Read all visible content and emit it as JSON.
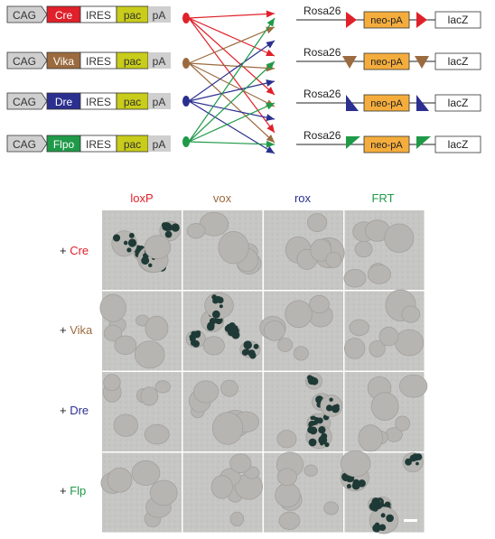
{
  "colors": {
    "cre": "#e0202a",
    "vika": "#9b6b3f",
    "dre": "#2b2f8f",
    "flp": "#1f9a48",
    "pac": "#c8cc1a",
    "gray": "#cfcfcf",
    "neo": "#f4ad3d",
    "panel": "#c3c3c1"
  },
  "constructs": {
    "cag": "CAG",
    "ires": "IRES",
    "pac": "pac",
    "pa": "pA",
    "rows": [
      {
        "recombinase": "Cre",
        "color": "#e0202a"
      },
      {
        "recombinase": "Vika",
        "color": "#9b6b3f"
      },
      {
        "recombinase": "Dre",
        "color": "#2b2f8f"
      },
      {
        "recombinase": "Flpo",
        "color": "#1f9a48"
      }
    ]
  },
  "reporters": {
    "locus": "Rosa26",
    "cassette": "neo-pA",
    "marker": "lacZ",
    "rows": [
      {
        "site": "loxP",
        "color": "#e0202a"
      },
      {
        "site": "vox",
        "color": "#9b6b3f"
      },
      {
        "site": "rox",
        "color": "#2b2f8f"
      },
      {
        "site": "FRT",
        "color": "#1f9a48"
      }
    ]
  },
  "grid": {
    "columns": [
      {
        "label": "loxP",
        "color": "#e0202a"
      },
      {
        "label": "vox",
        "color": "#9b6b3f"
      },
      {
        "label": "rox",
        "color": "#2b2f8f"
      },
      {
        "label": "FRT",
        "color": "#1f9a48"
      }
    ],
    "rows": [
      {
        "prefix": "+ ",
        "label": "Cre",
        "color": "#e0202a"
      },
      {
        "prefix": "+ ",
        "label": "Vika",
        "color": "#9b6b3f"
      },
      {
        "prefix": "+ ",
        "label": "Dre",
        "color": "#2b2f8f"
      },
      {
        "prefix": "+ ",
        "label": "Flp",
        "color": "#1f9a48"
      }
    ],
    "stained_panels": [
      [
        0,
        0
      ],
      [
        1,
        1
      ],
      [
        2,
        2
      ],
      [
        3,
        3
      ]
    ]
  }
}
